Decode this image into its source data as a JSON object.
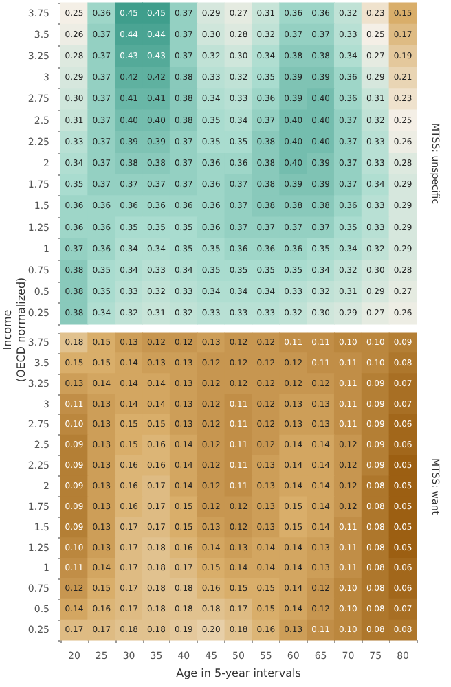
{
  "chart_data": [
    {
      "type": "heatmap",
      "y2label": "MTSS: unspecific",
      "ylabel": "Income\n(OECD normalized)",
      "tick_labels": "y",
      "cell_labels": [
        [
          "0.25",
          "0.36",
          "0.45",
          "0.45",
          "0.37",
          "0.29",
          "0.27",
          "0.31",
          "0.36",
          "0.36",
          "0.32",
          "0.23",
          "0.15"
        ],
        [
          "0.26",
          "0.37",
          "0.44",
          "0.44",
          "0.37",
          "0.30",
          "0.28",
          "0.32",
          "0.37",
          "0.37",
          "0.33",
          "0.25",
          "0.17"
        ],
        [
          "0.28",
          "0.37",
          "0.43",
          "0.43",
          "0.37",
          "0.32",
          "0.30",
          "0.34",
          "0.38",
          "0.38",
          "0.34",
          "0.27",
          "0.19"
        ],
        [
          "0.29",
          "0.37",
          "0.42",
          "0.42",
          "0.38",
          "0.33",
          "0.32",
          "0.35",
          "0.39",
          "0.39",
          "0.36",
          "0.29",
          "0.21"
        ],
        [
          "0.30",
          "0.37",
          "0.41",
          "0.41",
          "0.38",
          "0.34",
          "0.33",
          "0.36",
          "0.39",
          "0.40",
          "0.36",
          "0.31",
          "0.23"
        ],
        [
          "0.31",
          "0.37",
          "0.40",
          "0.40",
          "0.38",
          "0.35",
          "0.34",
          "0.37",
          "0.40",
          "0.40",
          "0.37",
          "0.32",
          "0.25"
        ],
        [
          "0.33",
          "0.37",
          "0.39",
          "0.39",
          "0.37",
          "0.35",
          "0.35",
          "0.38",
          "0.40",
          "0.40",
          "0.37",
          "0.33",
          "0.26"
        ],
        [
          "0.34",
          "0.37",
          "0.38",
          "0.38",
          "0.37",
          "0.36",
          "0.36",
          "0.38",
          "0.40",
          "0.39",
          "0.37",
          "0.33",
          "0.28"
        ],
        [
          "0.35",
          "0.37",
          "0.37",
          "0.37",
          "0.37",
          "0.36",
          "0.37",
          "0.38",
          "0.39",
          "0.39",
          "0.37",
          "0.34",
          "0.29"
        ],
        [
          "0.36",
          "0.36",
          "0.36",
          "0.36",
          "0.36",
          "0.36",
          "0.37",
          "0.38",
          "0.38",
          "0.38",
          "0.36",
          "0.33",
          "0.29"
        ],
        [
          "0.36",
          "0.36",
          "0.35",
          "0.35",
          "0.35",
          "0.36",
          "0.37",
          "0.37",
          "0.37",
          "0.37",
          "0.35",
          "0.33",
          "0.29"
        ],
        [
          "0.37",
          "0.36",
          "0.34",
          "0.34",
          "0.35",
          "0.35",
          "0.36",
          "0.36",
          "0.36",
          "0.35",
          "0.34",
          "0.32",
          "0.29"
        ],
        [
          "0.38",
          "0.35",
          "0.34",
          "0.33",
          "0.34",
          "0.35",
          "0.35",
          "0.35",
          "0.35",
          "0.34",
          "0.32",
          "0.30",
          "0.28"
        ],
        [
          "0.38",
          "0.35",
          "0.33",
          "0.32",
          "0.33",
          "0.34",
          "0.34",
          "0.34",
          "0.33",
          "0.32",
          "0.31",
          "0.29",
          "0.27"
        ],
        [
          "0.38",
          "0.34",
          "0.32",
          "0.31",
          "0.32",
          "0.33",
          "0.33",
          "0.33",
          "0.32",
          "0.30",
          "0.29",
          "0.27",
          "0.26"
        ]
      ],
      "categories": [
        "20",
        "25",
        "30",
        "35",
        "40",
        "45",
        "50",
        "55",
        "60",
        "65",
        "70",
        "75",
        "80"
      ],
      "y_categories": [
        "3.75",
        "3.5",
        "3.25",
        "3",
        "2.75",
        "2.5",
        "2.25",
        "2",
        "1.75",
        "1.5",
        "1.25",
        "1",
        "0.75",
        "0.5",
        "0.25"
      ],
      "data_labels": true,
      "cells": [
        [
          0.25,
          0.36,
          0.45,
          0.45,
          0.37,
          0.29,
          0.27,
          0.31,
          0.36,
          0.36,
          0.32,
          0.23,
          0.15
        ],
        [
          0.26,
          0.37,
          0.44,
          0.44,
          0.37,
          0.3,
          0.28,
          0.32,
          0.37,
          0.37,
          0.33,
          0.25,
          0.17
        ],
        [
          0.28,
          0.37,
          0.43,
          0.43,
          0.37,
          0.32,
          0.3,
          0.34,
          0.38,
          0.38,
          0.34,
          0.27,
          0.19
        ],
        [
          0.29,
          0.37,
          0.42,
          0.42,
          0.38,
          0.33,
          0.32,
          0.35,
          0.39,
          0.39,
          0.36,
          0.29,
          0.21
        ],
        [
          0.3,
          0.37,
          0.41,
          0.41,
          0.38,
          0.34,
          0.33,
          0.36,
          0.39,
          0.4,
          0.36,
          0.31,
          0.23
        ],
        [
          0.31,
          0.37,
          0.4,
          0.4,
          0.38,
          0.35,
          0.34,
          0.37,
          0.4,
          0.4,
          0.37,
          0.32,
          0.25
        ],
        [
          0.33,
          0.37,
          0.39,
          0.39,
          0.37,
          0.35,
          0.35,
          0.38,
          0.4,
          0.4,
          0.37,
          0.33,
          0.26
        ],
        [
          0.34,
          0.37,
          0.38,
          0.38,
          0.37,
          0.36,
          0.36,
          0.38,
          0.4,
          0.39,
          0.37,
          0.33,
          0.28
        ],
        [
          0.35,
          0.37,
          0.37,
          0.37,
          0.37,
          0.36,
          0.37,
          0.38,
          0.39,
          0.39,
          0.37,
          0.34,
          0.29
        ],
        [
          0.36,
          0.36,
          0.36,
          0.36,
          0.36,
          0.36,
          0.37,
          0.38,
          0.38,
          0.38,
          0.36,
          0.33,
          0.29
        ],
        [
          0.36,
          0.36,
          0.35,
          0.35,
          0.35,
          0.36,
          0.37,
          0.37,
          0.37,
          0.37,
          0.35,
          0.33,
          0.29
        ],
        [
          0.37,
          0.36,
          0.34,
          0.34,
          0.35,
          0.35,
          0.36,
          0.36,
          0.36,
          0.35,
          0.34,
          0.32,
          0.29
        ],
        [
          0.38,
          0.35,
          0.34,
          0.33,
          0.34,
          0.35,
          0.35,
          0.35,
          0.35,
          0.34,
          0.32,
          0.3,
          0.28
        ],
        [
          0.38,
          0.35,
          0.33,
          0.32,
          0.33,
          0.34,
          0.34,
          0.34,
          0.33,
          0.32,
          0.31,
          0.29,
          0.27
        ],
        [
          0.38,
          0.34,
          0.32,
          0.31,
          0.32,
          0.33,
          0.33,
          0.33,
          0.32,
          0.3,
          0.29,
          0.27,
          0.26
        ]
      ]
    },
    {
      "type": "heatmap",
      "y2label": "MTSS: want",
      "xlabel": "Age in 5-year intervals",
      "cell_labels": [
        [
          "0.18",
          "0.15",
          "0.13",
          "0.12",
          "0.12",
          "0.13",
          "0.12",
          "0.12",
          "0.11",
          "0.11",
          "0.10",
          "0.10",
          "0.09"
        ],
        [
          "0.15",
          "0.15",
          "0.14",
          "0.13",
          "0.13",
          "0.12",
          "0.12",
          "0.12",
          "0.12",
          "0.11",
          "0.11",
          "0.10",
          "0.08"
        ],
        [
          "0.13",
          "0.14",
          "0.14",
          "0.14",
          "0.13",
          "0.12",
          "0.12",
          "0.12",
          "0.12",
          "0.12",
          "0.11",
          "0.09",
          "0.07"
        ],
        [
          "0.11",
          "0.13",
          "0.14",
          "0.14",
          "0.13",
          "0.12",
          "0.11",
          "0.12",
          "0.13",
          "0.13",
          "0.11",
          "0.09",
          "0.07"
        ],
        [
          "0.10",
          "0.13",
          "0.15",
          "0.15",
          "0.13",
          "0.12",
          "0.11",
          "0.12",
          "0.13",
          "0.13",
          "0.11",
          "0.09",
          "0.06"
        ],
        [
          "0.09",
          "0.13",
          "0.15",
          "0.16",
          "0.14",
          "0.12",
          "0.11",
          "0.12",
          "0.14",
          "0.14",
          "0.12",
          "0.09",
          "0.06"
        ],
        [
          "0.09",
          "0.13",
          "0.16",
          "0.16",
          "0.14",
          "0.12",
          "0.11",
          "0.13",
          "0.14",
          "0.14",
          "0.12",
          "0.09",
          "0.05"
        ],
        [
          "0.09",
          "0.13",
          "0.16",
          "0.17",
          "0.14",
          "0.12",
          "0.11",
          "0.13",
          "0.14",
          "0.14",
          "0.12",
          "0.08",
          "0.05"
        ],
        [
          "0.09",
          "0.13",
          "0.16",
          "0.17",
          "0.15",
          "0.12",
          "0.12",
          "0.13",
          "0.15",
          "0.14",
          "0.12",
          "0.08",
          "0.05"
        ],
        [
          "0.09",
          "0.13",
          "0.17",
          "0.17",
          "0.15",
          "0.13",
          "0.12",
          "0.13",
          "0.15",
          "0.14",
          "0.11",
          "0.08",
          "0.05"
        ],
        [
          "0.10",
          "0.13",
          "0.17",
          "0.18",
          "0.16",
          "0.14",
          "0.13",
          "0.14",
          "0.14",
          "0.13",
          "0.11",
          "0.08",
          "0.05"
        ],
        [
          "0.11",
          "0.14",
          "0.17",
          "0.18",
          "0.17",
          "0.15",
          "0.14",
          "0.14",
          "0.14",
          "0.13",
          "0.11",
          "0.08",
          "0.06"
        ],
        [
          "0.12",
          "0.15",
          "0.17",
          "0.18",
          "0.18",
          "0.16",
          "0.15",
          "0.15",
          "0.14",
          "0.12",
          "0.10",
          "0.08",
          "0.06"
        ],
        [
          "0.14",
          "0.16",
          "0.17",
          "0.18",
          "0.18",
          "0.18",
          "0.17",
          "0.15",
          "0.14",
          "0.12",
          "0.10",
          "0.08",
          "0.07"
        ],
        [
          "0.17",
          "0.17",
          "0.18",
          "0.18",
          "0.19",
          "0.20",
          "0.18",
          "0.16",
          "0.13",
          "0.11",
          "0.10",
          "0.08",
          "0.08"
        ]
      ],
      "categories": [
        "20",
        "25",
        "30",
        "35",
        "40",
        "45",
        "50",
        "55",
        "60",
        "65",
        "70",
        "75",
        "80"
      ],
      "y_categories": [
        "3.75",
        "3.5",
        "3.25",
        "3",
        "2.75",
        "2.5",
        "2.25",
        "2",
        "1.75",
        "1.5",
        "1.25",
        "1",
        "0.75",
        "0.5",
        "0.25"
      ],
      "data_labels": true,
      "cells": [
        [
          0.18,
          0.15,
          0.13,
          0.12,
          0.12,
          0.13,
          0.12,
          0.12,
          0.11,
          0.11,
          0.1,
          0.1,
          0.09
        ],
        [
          0.15,
          0.15,
          0.14,
          0.13,
          0.13,
          0.12,
          0.12,
          0.12,
          0.12,
          0.11,
          0.11,
          0.1,
          0.08
        ],
        [
          0.13,
          0.14,
          0.14,
          0.14,
          0.13,
          0.12,
          0.12,
          0.12,
          0.12,
          0.12,
          0.11,
          0.09,
          0.07
        ],
        [
          0.11,
          0.13,
          0.14,
          0.14,
          0.13,
          0.12,
          0.11,
          0.12,
          0.13,
          0.13,
          0.11,
          0.09,
          0.07
        ],
        [
          0.1,
          0.13,
          0.15,
          0.15,
          0.13,
          0.12,
          0.11,
          0.12,
          0.13,
          0.13,
          0.11,
          0.09,
          0.06
        ],
        [
          0.09,
          0.13,
          0.15,
          0.16,
          0.14,
          0.12,
          0.11,
          0.12,
          0.14,
          0.14,
          0.12,
          0.09,
          0.06
        ],
        [
          0.09,
          0.13,
          0.16,
          0.16,
          0.14,
          0.12,
          0.11,
          0.13,
          0.14,
          0.14,
          0.12,
          0.09,
          0.05
        ],
        [
          0.09,
          0.13,
          0.16,
          0.17,
          0.14,
          0.12,
          0.11,
          0.13,
          0.14,
          0.14,
          0.12,
          0.08,
          0.05
        ],
        [
          0.09,
          0.13,
          0.16,
          0.17,
          0.15,
          0.12,
          0.12,
          0.13,
          0.15,
          0.14,
          0.12,
          0.08,
          0.05
        ],
        [
          0.09,
          0.13,
          0.17,
          0.17,
          0.15,
          0.13,
          0.12,
          0.13,
          0.15,
          0.14,
          0.11,
          0.08,
          0.05
        ],
        [
          0.1,
          0.13,
          0.17,
          0.18,
          0.16,
          0.14,
          0.13,
          0.14,
          0.14,
          0.13,
          0.11,
          0.08,
          0.05
        ],
        [
          0.11,
          0.14,
          0.17,
          0.18,
          0.17,
          0.15,
          0.14,
          0.14,
          0.14,
          0.13,
          0.11,
          0.08,
          0.06
        ],
        [
          0.12,
          0.15,
          0.17,
          0.18,
          0.18,
          0.16,
          0.15,
          0.15,
          0.14,
          0.12,
          0.1,
          0.08,
          0.06
        ],
        [
          0.14,
          0.16,
          0.17,
          0.18,
          0.18,
          0.18,
          0.17,
          0.15,
          0.14,
          0.12,
          0.1,
          0.08,
          0.07
        ],
        [
          0.17,
          0.17,
          0.18,
          0.18,
          0.19,
          0.2,
          0.18,
          0.16,
          0.13,
          0.11,
          0.1,
          0.08,
          0.08
        ]
      ]
    }
  ]
}
